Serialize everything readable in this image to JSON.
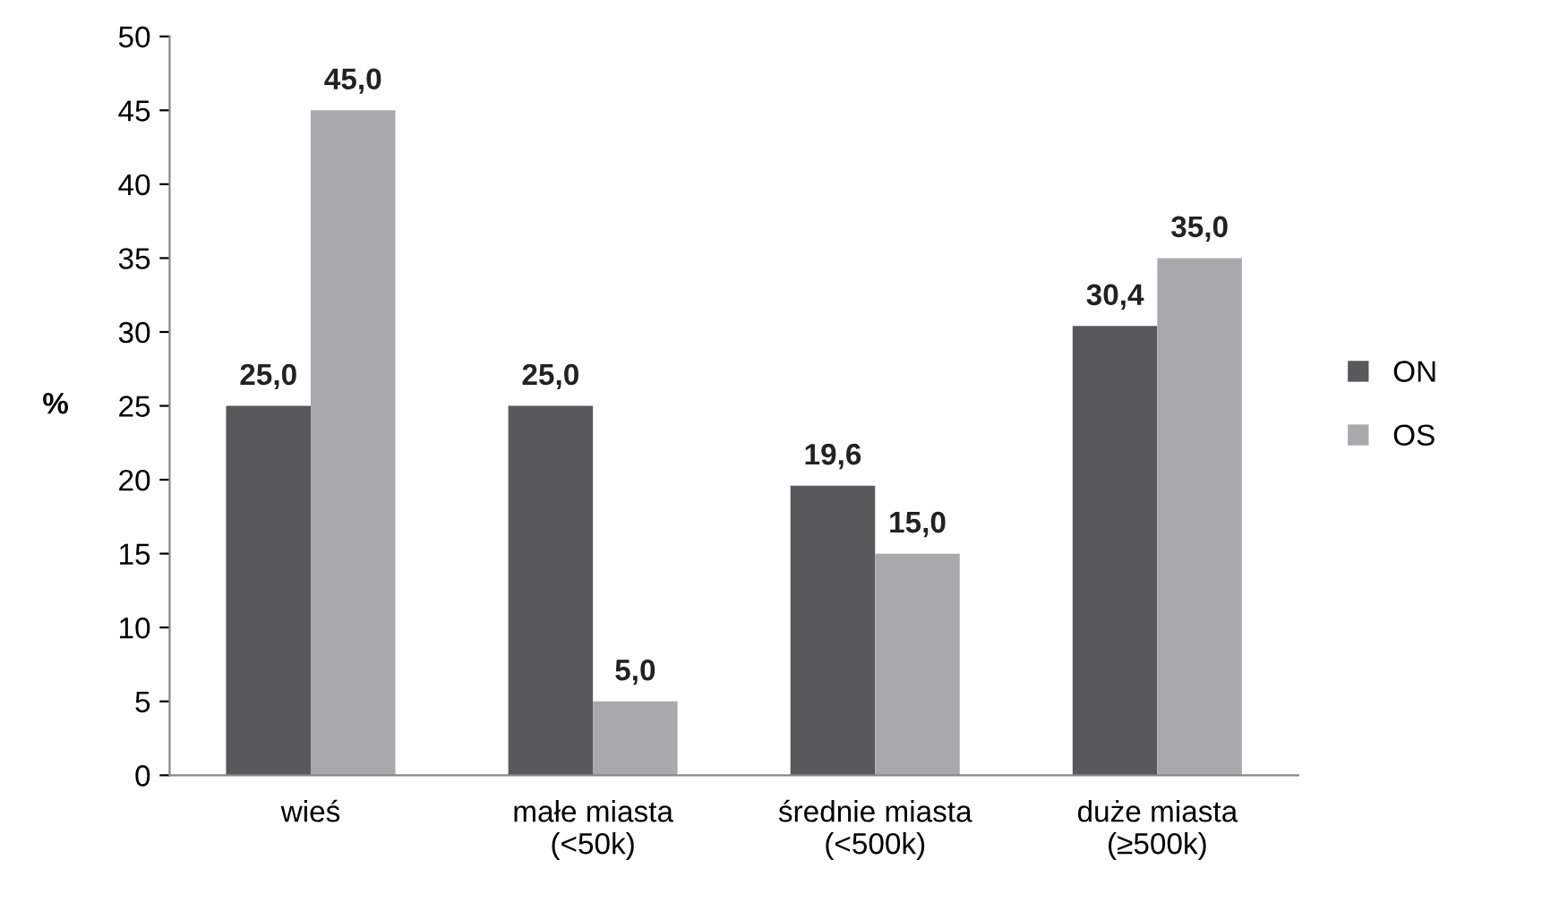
{
  "chart_data": {
    "type": "bar",
    "ylabel": "%",
    "categories": [
      "wieś",
      "małe miasta\n(<50k)",
      "średnie miasta\n(<500k)",
      "duże miasta\n(≥500k)"
    ],
    "series": [
      {
        "name": "ON",
        "color": "#58595b",
        "values": [
          25.0,
          25.0,
          19.6,
          30.4
        ],
        "value_labels": [
          "25,0",
          "25,0",
          "19,6",
          "30,4"
        ]
      },
      {
        "name": "OS",
        "color": "#a7a9ac",
        "values": [
          45.0,
          5.0,
          15.0,
          35.0
        ],
        "value_labels": [
          "45,0",
          "5,0",
          "15,0",
          "35,0"
        ]
      }
    ],
    "ylim": [
      0,
      50
    ],
    "yticks": [
      0,
      5,
      10,
      15,
      20,
      25,
      30,
      35,
      40,
      45,
      50
    ],
    "grid": false,
    "legend": "right"
  }
}
